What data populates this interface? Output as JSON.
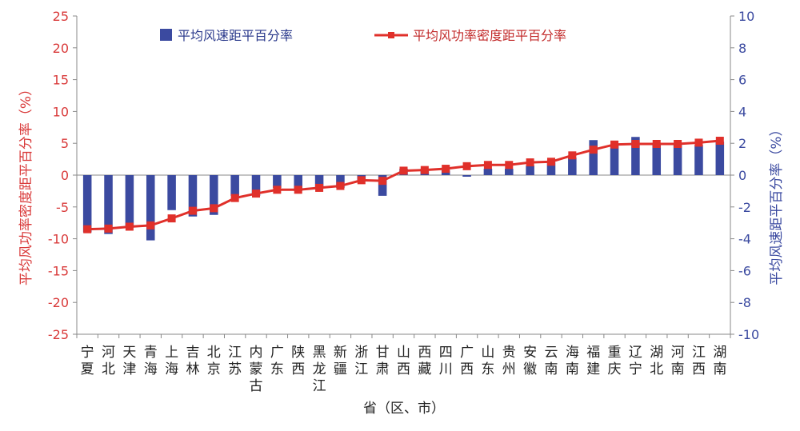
{
  "chart_data": {
    "type": "bar",
    "xlabel": "省（区、市）",
    "ylabel_left": "平均风功率密度距平百分率（%）",
    "ylabel_right": "平均风速距平百分率（%）",
    "categories": [
      "宁夏",
      "河北",
      "天津",
      "青海",
      "上海",
      "吉林",
      "北京",
      "江苏",
      "内蒙古",
      "广东",
      "陕西",
      "黑龙江",
      "新疆",
      "浙江",
      "甘肃",
      "山西",
      "西藏",
      "四川",
      "广西",
      "山东",
      "贵州",
      "安徽",
      "云南",
      "海南",
      "福建",
      "重庆",
      "辽宁",
      "湖北",
      "河南",
      "江西",
      "湖南"
    ],
    "y_left": {
      "min": -25,
      "max": 25,
      "ticks": [
        -25,
        -20,
        -15,
        -10,
        -5,
        0,
        5,
        10,
        15,
        20,
        25
      ]
    },
    "y_right": {
      "min": -10,
      "max": 10,
      "ticks": [
        -10,
        -8,
        -6,
        -4,
        -2,
        0,
        2,
        4,
        6,
        8,
        10
      ]
    },
    "series": [
      {
        "name": "平均风速距平百分率",
        "type": "bar",
        "axis": "right",
        "color": "#3b4aa0",
        "values": [
          -3.6,
          -3.7,
          -3.3,
          -4.1,
          -2.2,
          -2.6,
          -2.5,
          -1.3,
          -1.3,
          -0.8,
          -1.0,
          -0.8,
          -0.8,
          -0.3,
          -1.3,
          0.4,
          0.4,
          0.3,
          -0.1,
          0.4,
          0.4,
          0.6,
          0.8,
          1.1,
          2.2,
          1.9,
          2.4,
          2.0,
          1.9,
          1.9,
          2.1
        ]
      },
      {
        "name": "平均风功率密度距平百分率",
        "type": "line",
        "axis": "left",
        "color": "#e0302a",
        "values": [
          -8.5,
          -8.4,
          -8.1,
          -7.9,
          -6.8,
          -5.6,
          -5.2,
          -3.6,
          -2.9,
          -2.3,
          -2.3,
          -2.0,
          -1.7,
          -0.8,
          -0.9,
          0.7,
          0.8,
          1.0,
          1.4,
          1.6,
          1.6,
          2.0,
          2.1,
          3.1,
          4.0,
          4.8,
          4.9,
          4.9,
          4.9,
          5.1,
          5.4
        ]
      }
    ]
  }
}
